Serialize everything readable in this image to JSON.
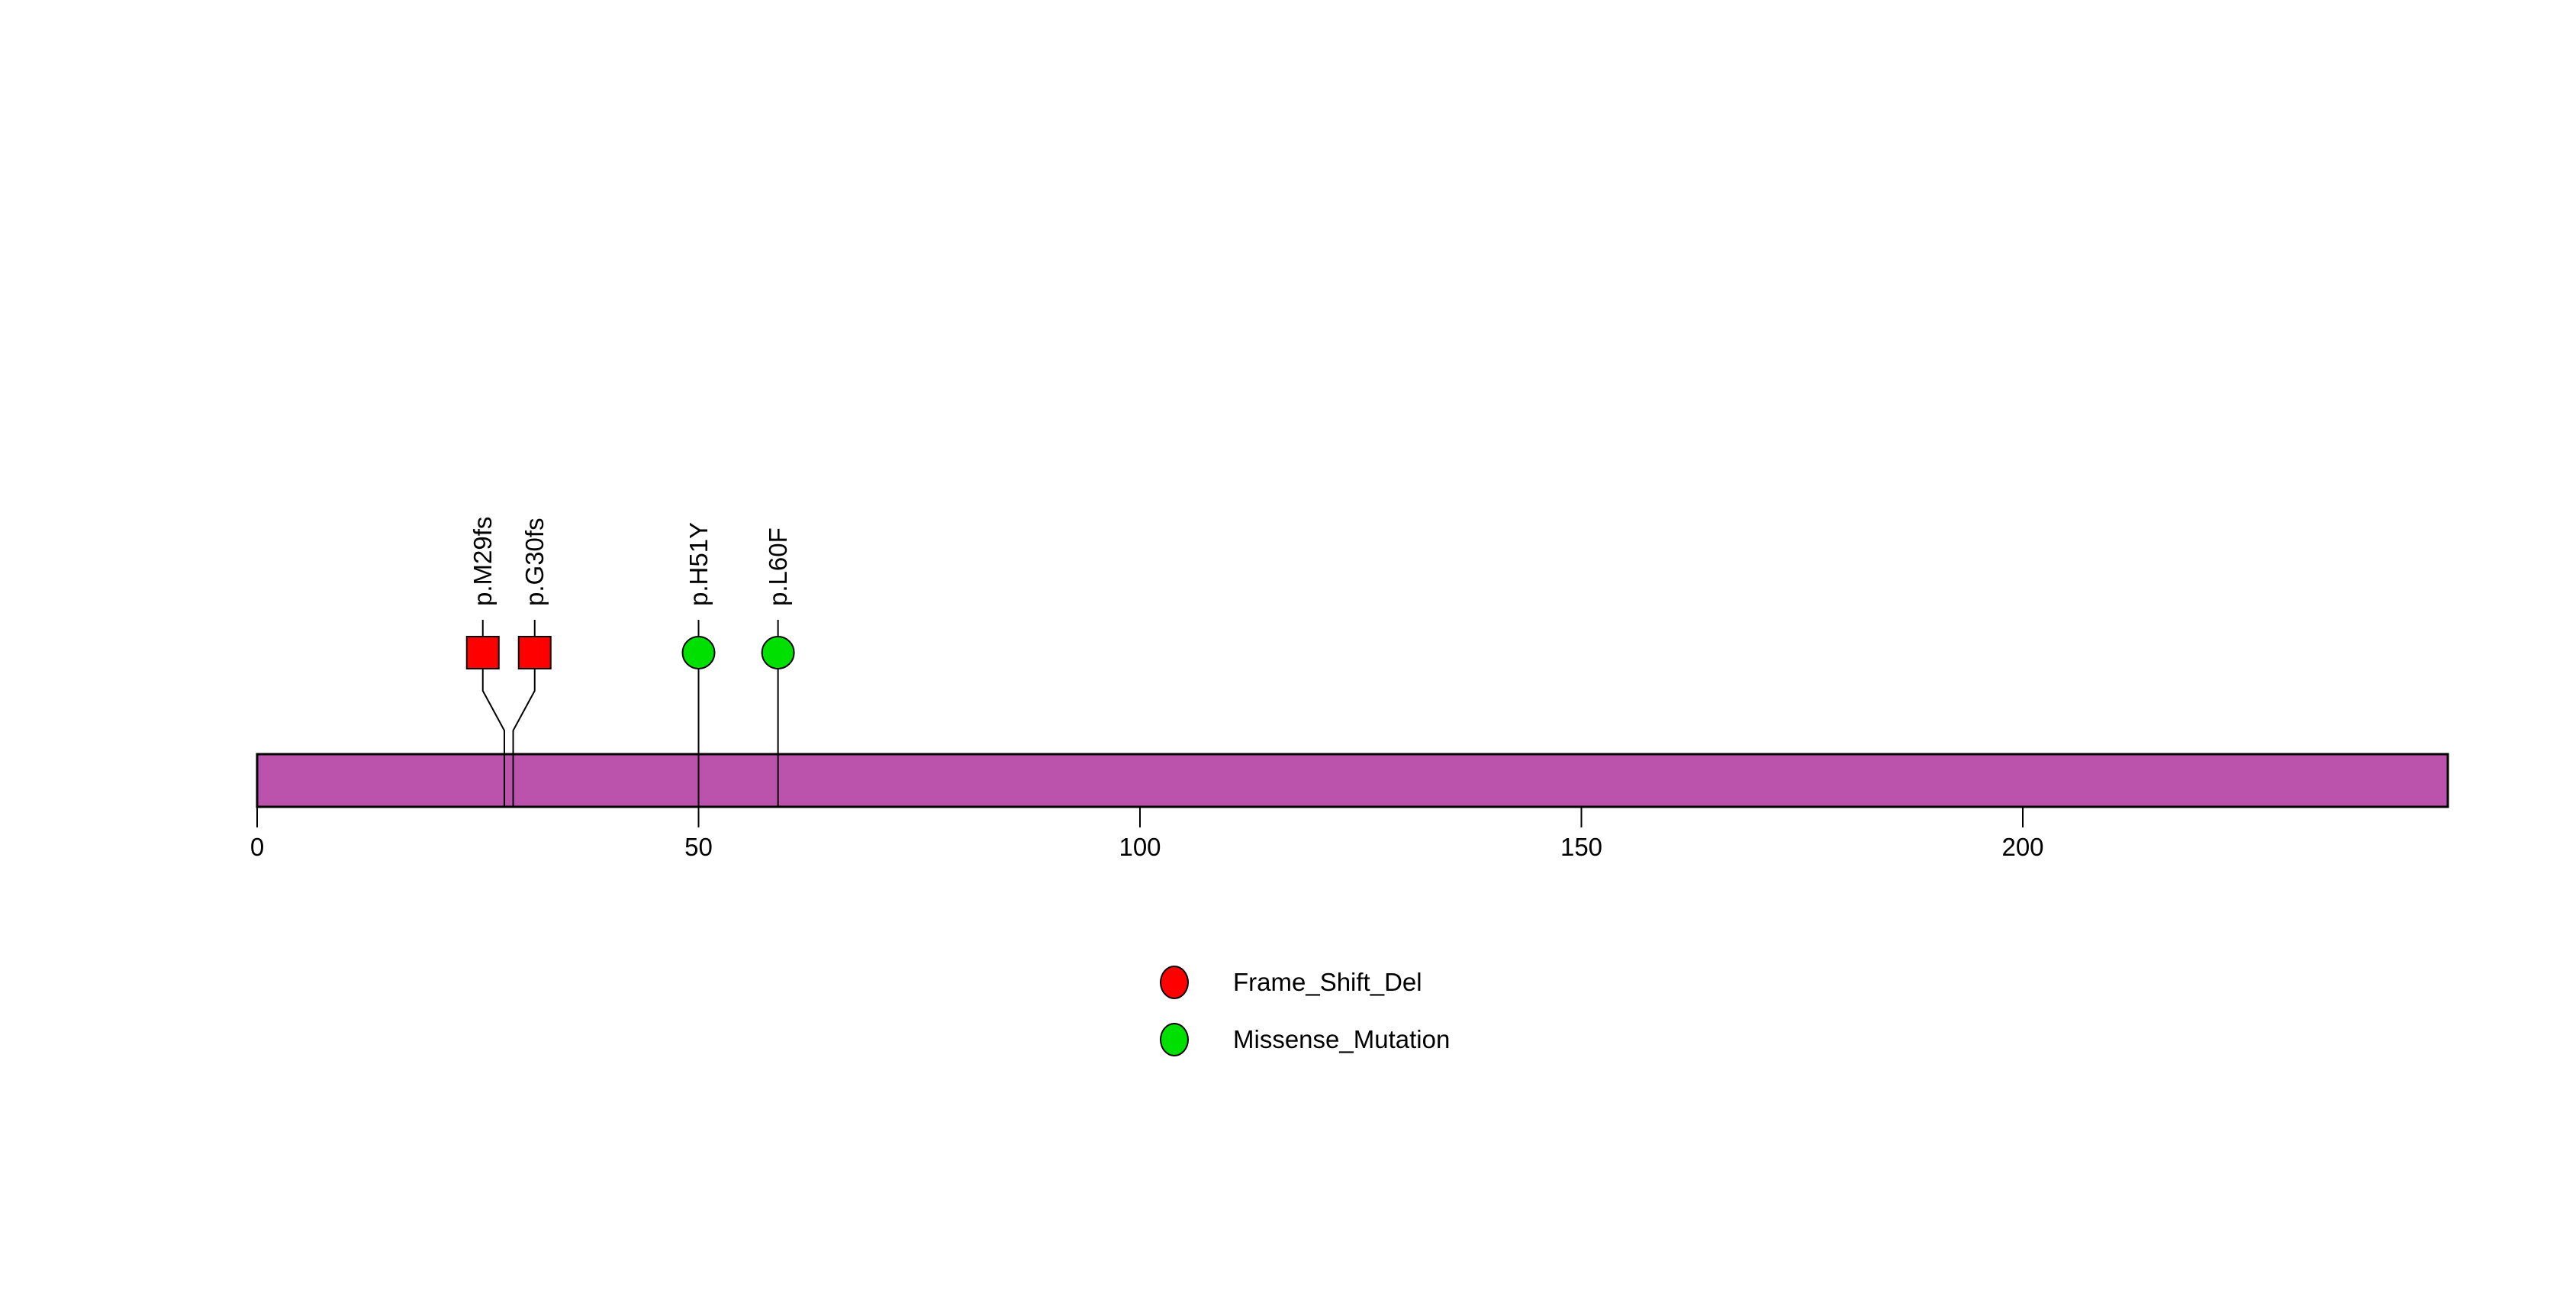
{
  "chart_data": {
    "type": "lollipop",
    "title": "",
    "protein_length": 248,
    "xlim": [
      0,
      248
    ],
    "x_ticks": [
      "0",
      "50",
      "100",
      "150",
      "200"
    ],
    "x_tick_values": [
      0,
      50,
      100,
      150,
      200
    ],
    "backbone_color": "#BB52AC",
    "stick_color": "#000000",
    "grid": false,
    "legend_position": "bottom-center",
    "mutations": [
      {
        "label": "p.M29fs",
        "position": 29,
        "type": "Frame_Shift_Del",
        "shape": "square",
        "color": "#FF0000"
      },
      {
        "label": "p.G30fs",
        "position": 30,
        "type": "Frame_Shift_Del",
        "shape": "square",
        "color": "#FF0000"
      },
      {
        "label": "p.H51Y",
        "position": 51,
        "type": "Missense_Mutation",
        "shape": "circle",
        "color": "#00E000"
      },
      {
        "label": "p.L60F",
        "position": 60,
        "type": "Missense_Mutation",
        "shape": "circle",
        "color": "#00E000"
      }
    ],
    "legend": [
      {
        "label": "Frame_Shift_Del",
        "color": "#FF0000"
      },
      {
        "label": "Missense_Mutation",
        "color": "#00E000"
      }
    ]
  }
}
